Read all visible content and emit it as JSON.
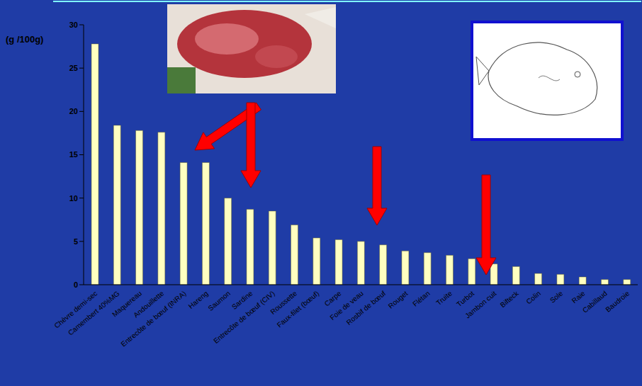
{
  "chart_data": {
    "type": "bar",
    "y_label": "(g /100g)",
    "categories": [
      "Chèvre demi-sec",
      "Camembert 40%MG",
      "Maquereau",
      "Andouillette",
      "Entrecôte de bœuf (INRA)",
      "Hareng",
      "Saumon",
      "Sardine",
      "Entrecôte de bœuf (CIV)",
      "Roussette",
      "Faux-filet (bœuf)",
      "Carpe",
      "Foie de veau",
      "Rosbif de bœuf",
      "Rouget",
      "Flétan",
      "Truite",
      "Turbot",
      "Jambon cuit",
      "Bifteck",
      "Colin",
      "Sole",
      "Raie",
      "Cabillaud",
      "Baudroie"
    ],
    "values": [
      27.8,
      18.4,
      17.8,
      17.6,
      14.1,
      14.1,
      10,
      8.7,
      8.5,
      6.9,
      5.4,
      5.2,
      5.0,
      4.6,
      3.9,
      3.7,
      3.4,
      3.0,
      2.4,
      2.1,
      1.3,
      1.2,
      0.9,
      0.6,
      0.6
    ],
    "color": "#ffffc0",
    "ylim": [
      0,
      30
    ],
    "yticks": [
      0,
      5,
      10,
      15,
      20,
      25,
      30
    ],
    "grid": false
  }
}
